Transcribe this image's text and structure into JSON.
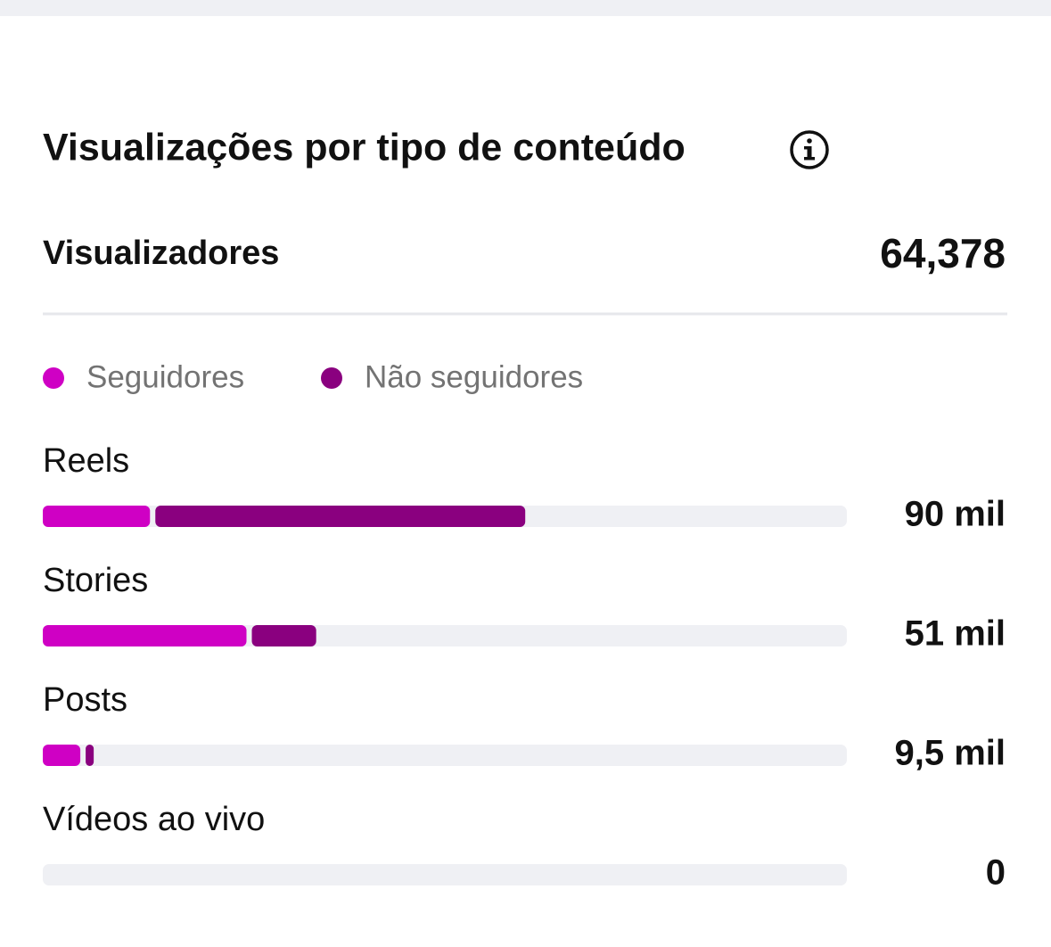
{
  "chart_data": {
    "type": "stacked_bar_horizontal",
    "title": "Visualizações por tipo de conteúdo",
    "categories": [
      "Reels",
      "Stories",
      "Posts",
      "Vídeos ao vivo"
    ],
    "series": [
      {
        "name": "Seguidores",
        "color": "#cf00c4",
        "values": [
          20000,
          38000,
          7000,
          0
        ]
      },
      {
        "name": "Não seguidores",
        "color": "#8a007f",
        "values": [
          70000,
          13000,
          2500,
          0
        ]
      }
    ],
    "totals": [
      90000,
      51000,
      9500,
      0
    ],
    "total_labels": [
      "90 mil",
      "51 mil",
      "9,5 mil",
      "0"
    ],
    "xlim": [
      0,
      150000
    ]
  },
  "summary": {
    "label": "Visualizadores",
    "value": "64,378"
  }
}
